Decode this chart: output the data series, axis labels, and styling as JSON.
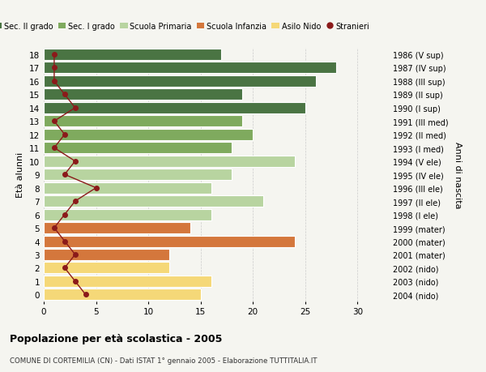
{
  "ages": [
    18,
    17,
    16,
    15,
    14,
    13,
    12,
    11,
    10,
    9,
    8,
    7,
    6,
    5,
    4,
    3,
    2,
    1,
    0
  ],
  "bar_values": [
    17,
    28,
    26,
    19,
    25,
    19,
    20,
    18,
    24,
    18,
    16,
    21,
    16,
    14,
    24,
    12,
    12,
    16,
    15
  ],
  "stranieri_x": [
    1,
    1,
    1,
    2,
    3,
    1,
    2,
    1,
    3,
    2,
    5,
    3,
    2,
    1,
    2,
    3,
    2,
    3,
    4
  ],
  "right_labels_by_age": {
    "18": "1986 (V sup)",
    "17": "1987 (IV sup)",
    "16": "1988 (III sup)",
    "15": "1989 (II sup)",
    "14": "1990 (I sup)",
    "13": "1991 (III med)",
    "12": "1992 (II med)",
    "11": "1993 (I med)",
    "10": "1994 (V ele)",
    "9": "1995 (IV ele)",
    "8": "1996 (III ele)",
    "7": "1997 (II ele)",
    "6": "1998 (I ele)",
    "5": "1999 (mater)",
    "4": "2000 (mater)",
    "3": "2001 (mater)",
    "2": "2002 (nido)",
    "1": "2003 (nido)",
    "0": "2004 (nido)"
  },
  "bar_colors": {
    "sec2": "#4a7443",
    "sec1": "#7faa5e",
    "primaria": "#b8d4a0",
    "infanzia": "#d4773c",
    "nido": "#f5d878"
  },
  "stranieri_color": "#8b1a1a",
  "bg_color": "#f5f5f0",
  "title": "Popolazione per età scolastica - 2005",
  "subtitle": "COMUNE DI CORTEMILIA (CN) - Dati ISTAT 1° gennaio 2005 - Elaborazione TUTTITALIA.IT",
  "ylabel": "Età alunni",
  "y2label": "Anni di nascita",
  "xlim": [
    0,
    33
  ]
}
